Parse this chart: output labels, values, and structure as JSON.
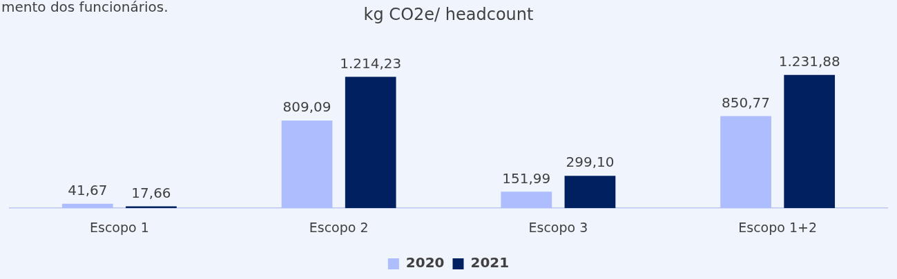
{
  "chart_data": {
    "type": "bar",
    "title": "kg CO2e/ headcount",
    "categories": [
      "Escopo 1",
      "Escopo 2",
      "Escopo 3",
      "Escopo 1+2"
    ],
    "series": [
      {
        "name": "2020",
        "color": "#adbdfd",
        "values": [
          41.67,
          809.09,
          151.99,
          850.77
        ],
        "value_labels": [
          "41,67",
          "809,09",
          "151,99",
          "850,77"
        ]
      },
      {
        "name": "2021",
        "color": "#002060",
        "values": [
          17.66,
          1214.23,
          299.1,
          1231.88
        ],
        "value_labels": [
          "17,66",
          "1.214,23",
          "299,10",
          "1.231,88"
        ]
      }
    ],
    "grid": false,
    "legend": "bottom",
    "tick_labels": "x",
    "annotations": [
      "mento dos funcionários."
    ]
  }
}
